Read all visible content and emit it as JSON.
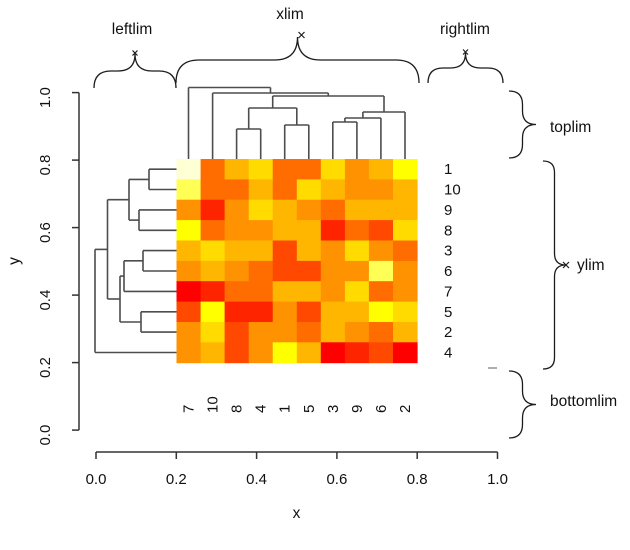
{
  "chart_data": {
    "type": "heatmap",
    "title": "",
    "description": "R heatmap with row and column dendrograms; curly-brace annotations mark the plot regions leftlim, xlim, rightlim, toplim, ylim, bottomlim",
    "x_axis": {
      "label": "x",
      "ticks": [
        "0.0",
        "0.2",
        "0.4",
        "0.6",
        "0.8",
        "1.0"
      ],
      "tick_values": [
        0.0,
        0.2,
        0.4,
        0.6,
        0.8,
        1.0
      ],
      "range": [
        0,
        1
      ]
    },
    "y_axis": {
      "label": "y",
      "ticks": [
        "0.0",
        "0.2",
        "0.4",
        "0.6",
        "0.8",
        "1.0"
      ],
      "tick_values": [
        0.0,
        0.2,
        0.4,
        0.6,
        0.8,
        1.0
      ],
      "range": [
        0,
        1
      ]
    },
    "heatmap": {
      "x_extent": [
        0.2,
        0.8
      ],
      "y_extent": [
        0.2,
        0.8
      ],
      "column_labels": [
        "7",
        "10",
        "8",
        "4",
        "1",
        "5",
        "3",
        "9",
        "6",
        "2"
      ],
      "row_labels": [
        "1",
        "10",
        "9",
        "8",
        "3",
        "6",
        "7",
        "5",
        "2",
        "4"
      ],
      "palette": [
        "#FF0000",
        "#FF2400",
        "#FF4900",
        "#FF6D00",
        "#FF9200",
        "#FFB600",
        "#FFDB00",
        "#FFFF00",
        "#FFFF55",
        "#FFFFD5"
      ],
      "cell_colors": [
        [
          "#FFFFD5",
          "#FF6D00",
          "#FFB600",
          "#FFDB00",
          "#FF6D00",
          "#FF6D00",
          "#FFDB00",
          "#FF9200",
          "#FFB600",
          "#FFFF00"
        ],
        [
          "#FFFF55",
          "#FF6D00",
          "#FF6D00",
          "#FFB600",
          "#FF6D00",
          "#FFDB00",
          "#FFB600",
          "#FF9200",
          "#FF9200",
          "#FFB600"
        ],
        [
          "#FF9200",
          "#FF2400",
          "#FF9200",
          "#FFDB00",
          "#FFB600",
          "#FF9200",
          "#FF6D00",
          "#FFB600",
          "#FFB600",
          "#FFB600"
        ],
        [
          "#FFFF00",
          "#FF6D00",
          "#FF9200",
          "#FF9200",
          "#FFB600",
          "#FFB600",
          "#FF2400",
          "#FF6D00",
          "#FF4900",
          "#FFDB00"
        ],
        [
          "#FFB600",
          "#FFDB00",
          "#FFB600",
          "#FFB600",
          "#FF4900",
          "#FFB600",
          "#FF9200",
          "#FFDB00",
          "#FF9200",
          "#FF6D00"
        ],
        [
          "#FF9200",
          "#FFB600",
          "#FF9200",
          "#FF6D00",
          "#FF4900",
          "#FF4900",
          "#FF9200",
          "#FF9200",
          "#FFFF55",
          "#FF9200"
        ],
        [
          "#FF0000",
          "#FF2400",
          "#FF6D00",
          "#FF6D00",
          "#FFB600",
          "#FFB600",
          "#FF9200",
          "#FFDB00",
          "#FF6D00",
          "#FF9200"
        ],
        [
          "#FF4900",
          "#FFFF00",
          "#FF2400",
          "#FF2400",
          "#FF9200",
          "#FF4900",
          "#FFB600",
          "#FFB600",
          "#FFFF00",
          "#FFDB00"
        ],
        [
          "#FF9200",
          "#FFDB00",
          "#FF4900",
          "#FF9200",
          "#FF9200",
          "#FF6D00",
          "#FFB600",
          "#FF9200",
          "#FF6D00",
          "#FFB600"
        ],
        [
          "#FF9200",
          "#FFB600",
          "#FF4900",
          "#FF9200",
          "#FFFF00",
          "#FFB600",
          "#FF0000",
          "#FF2400",
          "#FF4900",
          "#FF0000"
        ]
      ]
    },
    "annotations": {
      "leftlim": "leftlim",
      "xlim": "xlim",
      "rightlim": "rightlim",
      "toplim": "toplim",
      "ylim": "ylim",
      "bottomlim": "bottomlim"
    },
    "dendrograms": {
      "line_color": "#4d4d4d",
      "top_segments": [
        [
          188.5,
          159,
          188.5,
          87.5
        ],
        [
          212.6,
          159,
          212.6,
          93
        ],
        [
          236.6,
          159,
          236.6,
          129
        ],
        [
          260.7,
          159,
          260.7,
          129
        ],
        [
          284.7,
          159,
          284.7,
          125
        ],
        [
          308.8,
          159,
          308.8,
          125
        ],
        [
          332.8,
          159,
          332.8,
          122
        ],
        [
          356.9,
          159,
          356.9,
          122
        ],
        [
          380.9,
          159,
          380.9,
          118
        ],
        [
          405,
          159,
          405,
          112
        ],
        [
          236.6,
          129,
          260.7,
          129
        ],
        [
          248.7,
          129,
          248.7,
          108
        ],
        [
          284.7,
          125,
          308.8,
          125
        ],
        [
          296.8,
          125,
          296.8,
          108
        ],
        [
          248.7,
          108,
          296.8,
          108
        ],
        [
          272.7,
          108,
          272.7,
          96
        ],
        [
          332.8,
          122,
          356.9,
          122
        ],
        [
          344.9,
          122,
          344.9,
          118
        ],
        [
          344.9,
          118,
          380.9,
          118
        ],
        [
          362.9,
          118,
          362.9,
          112
        ],
        [
          362.9,
          112,
          405,
          112
        ],
        [
          384,
          112,
          384,
          96
        ],
        [
          272.7,
          96,
          384,
          96
        ],
        [
          328.3,
          96,
          328.3,
          93
        ],
        [
          212.6,
          93,
          328.3,
          93
        ],
        [
          270.5,
          93,
          270.5,
          87.5
        ],
        [
          188.5,
          87.5,
          270.5,
          87.5
        ]
      ],
      "left_segments": [
        [
          149,
          169.2,
          176.5,
          169.2
        ],
        [
          149,
          189.5,
          176.5,
          189.5
        ],
        [
          139,
          209.9,
          176.5,
          209.9
        ],
        [
          139,
          230.3,
          176.5,
          230.3
        ],
        [
          143,
          250.6,
          176.5,
          250.6
        ],
        [
          143,
          271,
          176.5,
          271
        ],
        [
          124,
          291.4,
          176.5,
          291.4
        ],
        [
          141,
          311.8,
          176.5,
          311.8
        ],
        [
          141,
          332.1,
          176.5,
          332.1
        ],
        [
          95,
          352.5,
          176.5,
          352.5
        ],
        [
          149,
          169.2,
          149,
          189.5
        ],
        [
          149,
          179.4,
          129,
          179.4
        ],
        [
          139,
          209.9,
          139,
          230.3
        ],
        [
          139,
          220.1,
          129,
          220.1
        ],
        [
          129,
          179.4,
          129,
          220.1
        ],
        [
          129,
          199.7,
          107.5,
          199.7
        ],
        [
          143,
          250.6,
          143,
          271
        ],
        [
          143,
          260.8,
          124,
          260.8
        ],
        [
          124,
          260.8,
          124,
          291.4
        ],
        [
          124,
          276.1,
          120,
          276.1
        ],
        [
          141,
          311.8,
          141,
          332.1
        ],
        [
          141,
          322,
          120,
          322
        ],
        [
          120,
          276.1,
          120,
          322
        ],
        [
          120,
          299,
          107.5,
          299
        ],
        [
          107.5,
          199.7,
          107.5,
          299
        ],
        [
          107.5,
          249.4,
          95,
          249.4
        ],
        [
          95,
          249.4,
          95,
          352.5
        ]
      ]
    }
  }
}
